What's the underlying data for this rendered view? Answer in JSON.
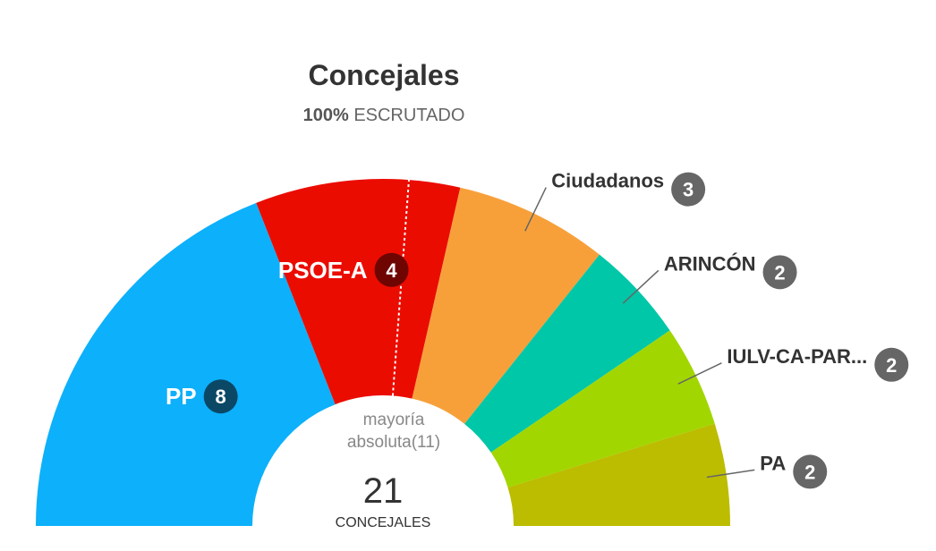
{
  "chart_data": {
    "type": "pie",
    "variant": "hemicycle",
    "title": "Concejales",
    "subtitle": {
      "percent": "100%",
      "text": "ESCRUTADO"
    },
    "total": 21,
    "total_label": "CONCEJALES",
    "majority_label_line1": "mayoría",
    "majority_label_line2": "absoluta(11)",
    "majority": 11,
    "series": [
      {
        "name": "PP",
        "value": 8,
        "color": "#0db0fa"
      },
      {
        "name": "PSOE-A",
        "value": 4,
        "color": "#eb0c00"
      },
      {
        "name": "Ciudadanos",
        "value": 3,
        "color": "#f7a03a"
      },
      {
        "name": "ARINCÓN",
        "value": 2,
        "color": "#00c7a8"
      },
      {
        "name": "IULV-CA-PAR...",
        "value": 2,
        "color": "#a2d600"
      },
      {
        "name": "PA",
        "value": 2,
        "color": "#bcbc00"
      }
    ],
    "badge_colors": {
      "PP": "#0b4866",
      "PSOE-A": "#6e0500",
      "outside": "#666666"
    }
  }
}
